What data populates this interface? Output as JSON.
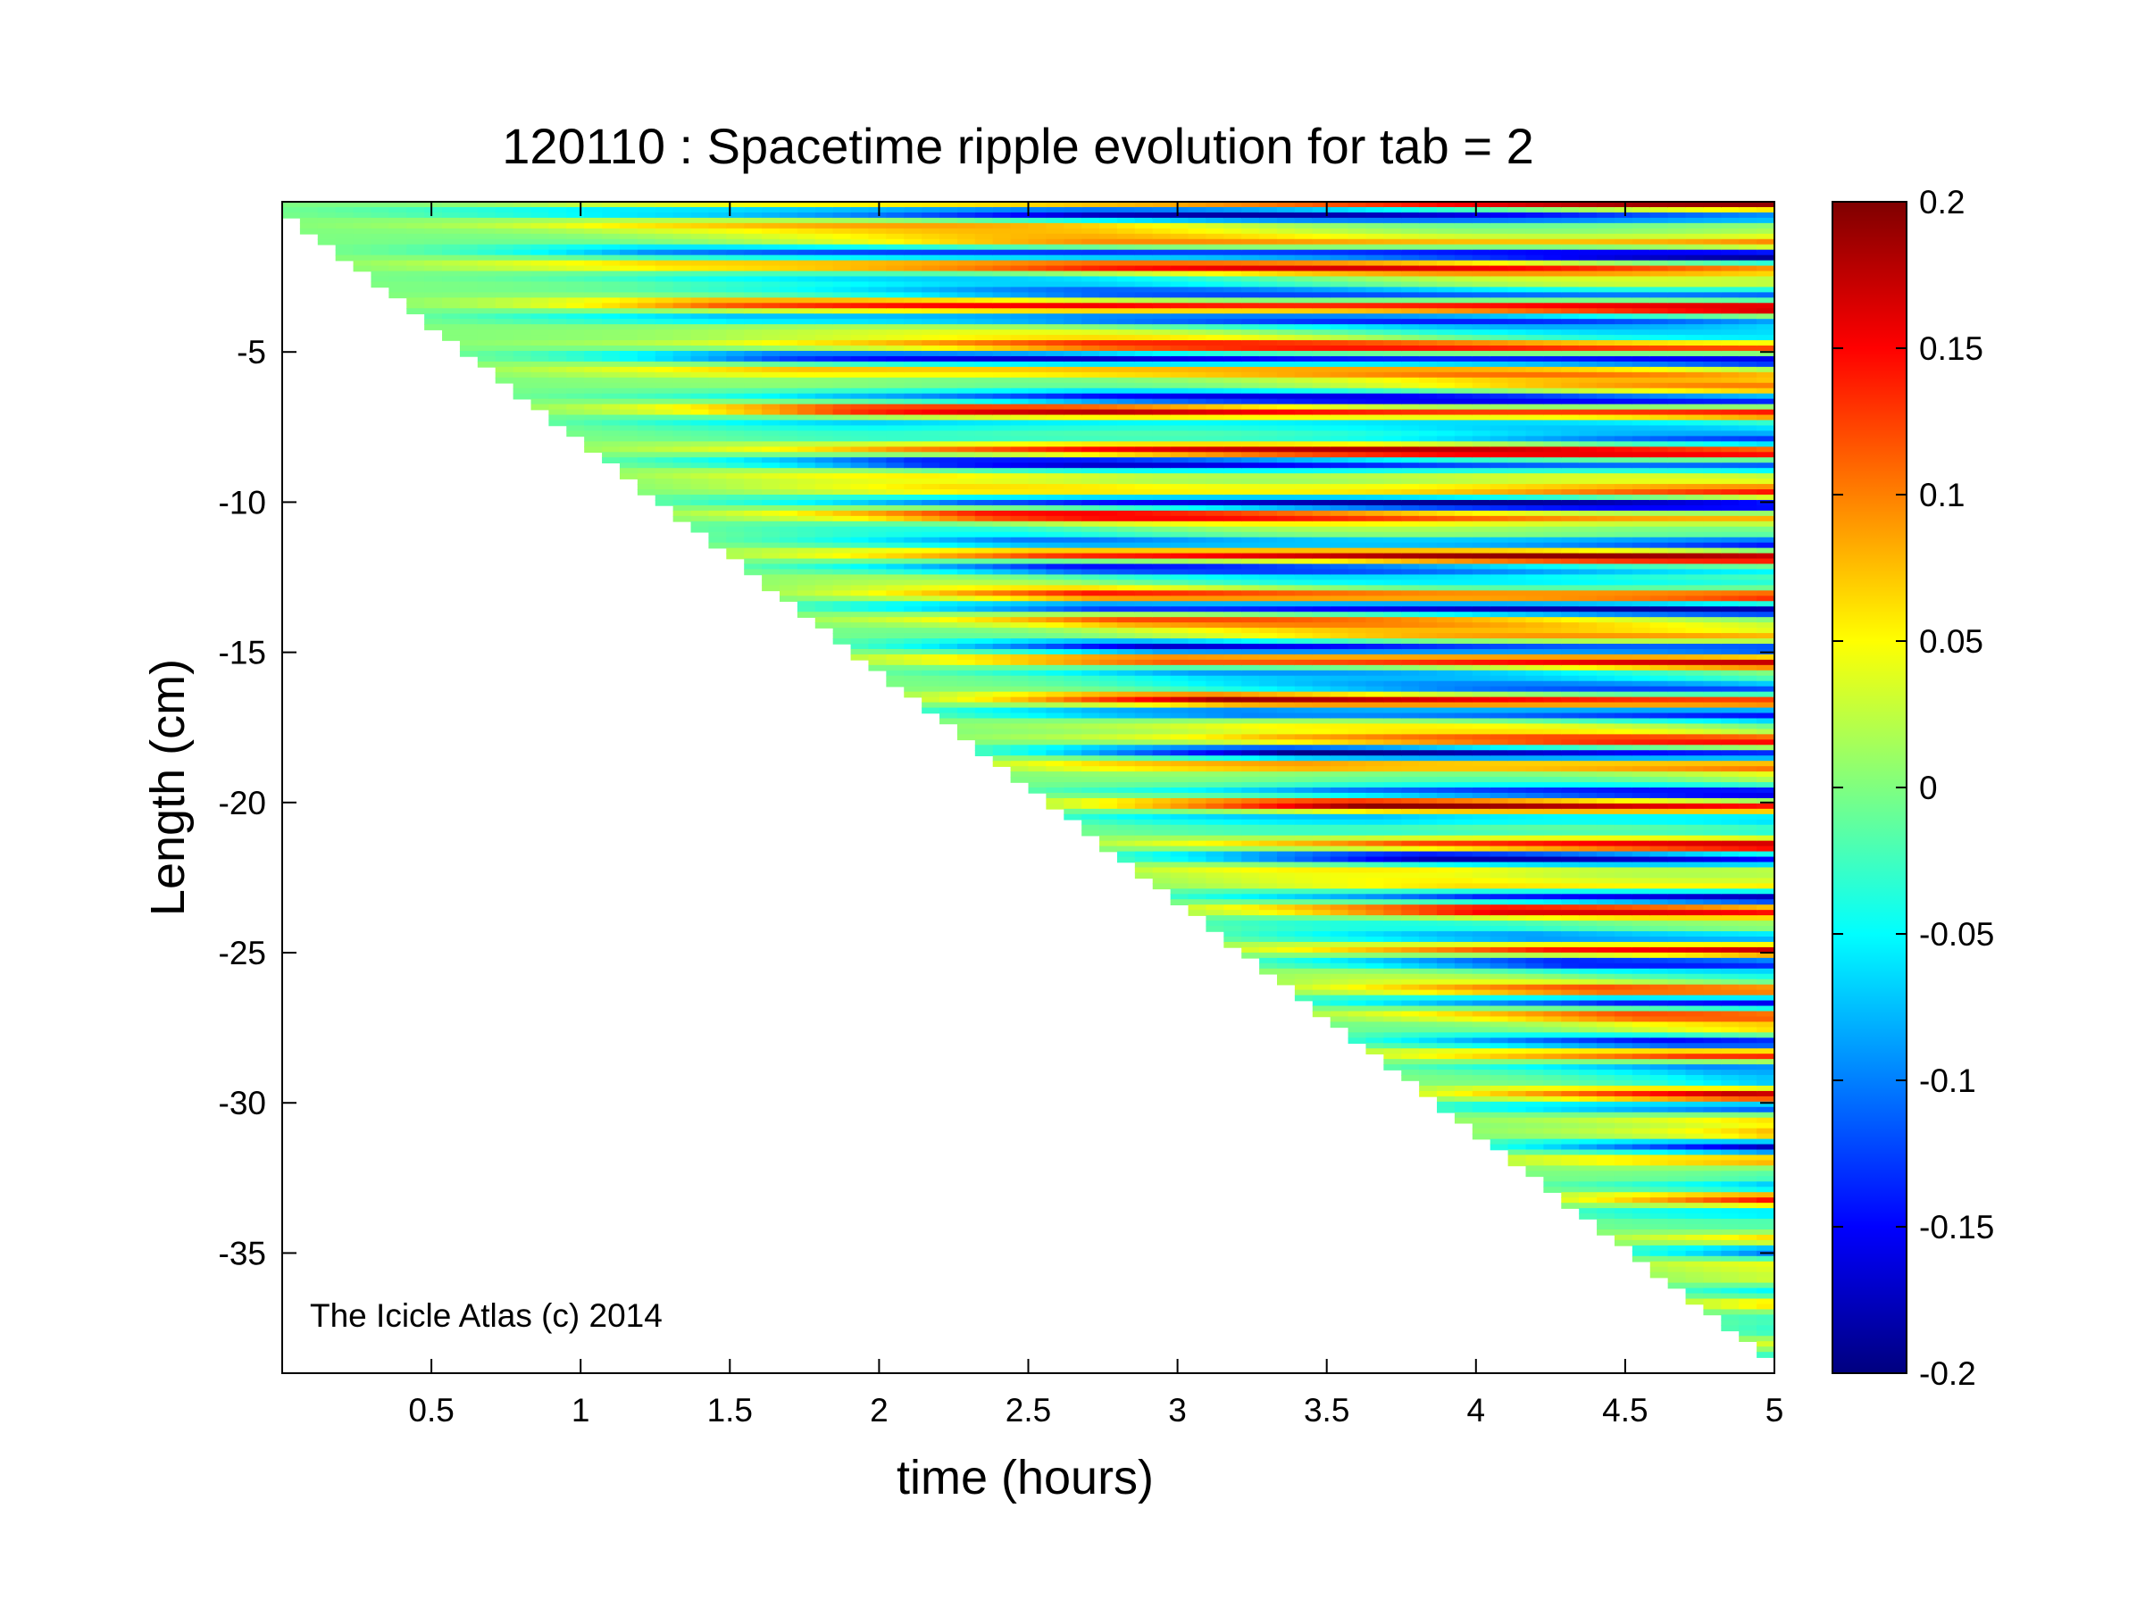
{
  "chart_data": {
    "type": "heatmap",
    "title": "120110 : Spacetime ripple evolution for tab = 2",
    "xlabel": "time (hours)",
    "ylabel": "Length (cm)",
    "xlim": [
      0,
      5
    ],
    "ylim": [
      -39,
      0
    ],
    "x_ticks": [
      0.5,
      1,
      1.5,
      2,
      2.5,
      3,
      3.5,
      4,
      4.5,
      5
    ],
    "x_tick_labels": [
      "0.5",
      "1",
      "1.5",
      "2",
      "2.5",
      "3",
      "3.5",
      "4",
      "4.5",
      "5"
    ],
    "y_ticks": [
      -5,
      -10,
      -15,
      -20,
      -25,
      -30,
      -35
    ],
    "y_tick_labels": [
      "-5",
      "-10",
      "-15",
      "-20",
      "-25",
      "-30",
      "-35"
    ],
    "colormap": "jet",
    "colorbar": {
      "range": [
        -0.2,
        0.2
      ],
      "ticks": [
        0.2,
        0.15,
        0.1,
        0.05,
        0,
        -0.05,
        -0.1,
        -0.15,
        -0.2
      ],
      "tick_labels": [
        "0.2",
        "0.15",
        "0.1",
        "0.05",
        "0",
        "-0.05",
        "-0.1",
        "-0.15",
        "-0.2"
      ]
    },
    "data_extent": {
      "description_free": true,
      "front_start": [
        0,
        -0.3
      ],
      "front_end": [
        5,
        -38.7
      ]
    },
    "annotation": "The Icicle Atlas (c) 2014",
    "grid": false
  },
  "colors": {
    "background": "#ffffff",
    "axes": "#000000"
  }
}
